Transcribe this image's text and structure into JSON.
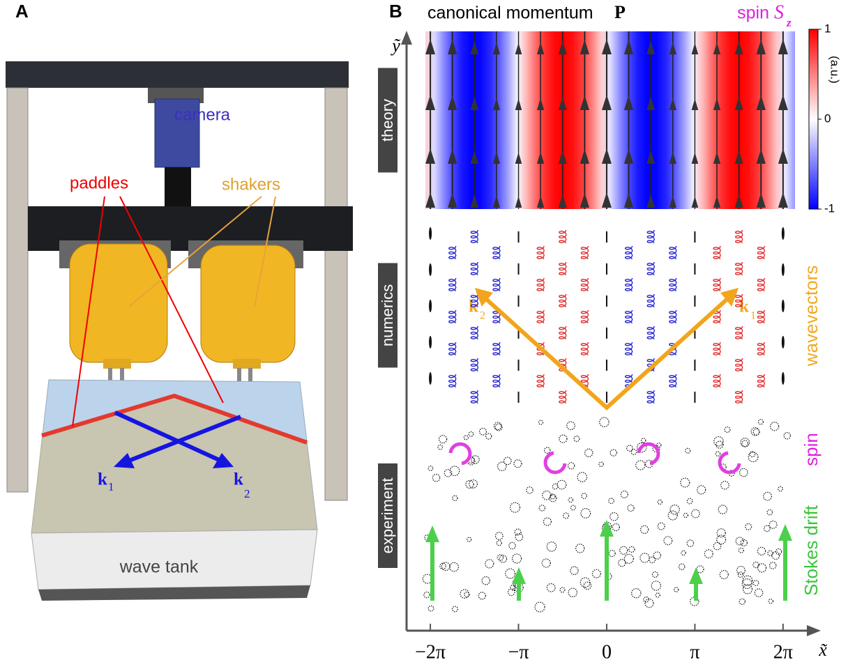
{
  "panel_a": {
    "letter": "A",
    "camera": "camera",
    "paddles": "paddles",
    "shakers": "shakers",
    "tank": "wave tank",
    "k1": {
      "symbol": "k",
      "sub": "1"
    },
    "k2": {
      "symbol": "k",
      "sub": "2"
    }
  },
  "panel_b": {
    "letter": "B",
    "title": {
      "text": "canonical momentum",
      "symbol": "P"
    },
    "spin_title": {
      "text": "spin",
      "symbol": "S",
      "sub": "z"
    },
    "colorbar": {
      "lim": [
        -1,
        1
      ],
      "ticks": [
        1,
        0,
        -1
      ],
      "unit": "(a.u.)",
      "colors": [
        "#0000ff",
        "#ffffff",
        "#ff0000"
      ]
    },
    "x_axis": {
      "label": "x̃",
      "xlim": [
        -7.13,
        7.33
      ],
      "xticks": [
        {
          "value": -6.283,
          "label": "−2π"
        },
        {
          "value": -3.142,
          "label": "−π"
        },
        0,
        {
          "value": 3.142,
          "label": "π"
        },
        {
          "value": 6.283,
          "label": "2π"
        }
      ]
    },
    "y_axis": {
      "label": "ỹ"
    },
    "rows": [
      "theory",
      "numerics",
      "experiment"
    ],
    "annotations": {
      "wavevectors": "wavevectors",
      "spin": "spin",
      "stokes": "Stokes drift",
      "k1": {
        "symbol": "k",
        "sub": "1"
      },
      "k2": {
        "symbol": "k",
        "sub": "2"
      }
    }
  }
}
